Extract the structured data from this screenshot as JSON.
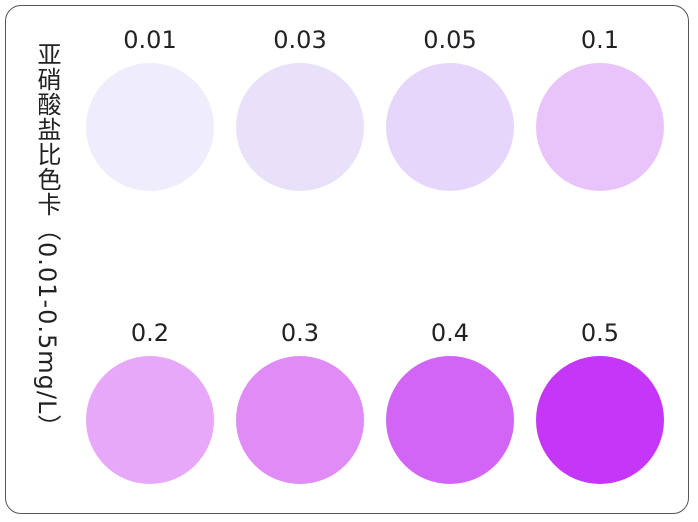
{
  "title": "亚硝酸盐比色卡（0.01-0.5mg/L）",
  "swatches": [
    {
      "label": "0.01",
      "color": "#efedfc"
    },
    {
      "label": "0.03",
      "color": "#e9e1fa"
    },
    {
      "label": "0.05",
      "color": "#e6d6fb"
    },
    {
      "label": "0.1",
      "color": "#e9c4fb"
    },
    {
      "label": "0.2",
      "color": "#e8a8f9"
    },
    {
      "label": "0.3",
      "color": "#e08bf6"
    },
    {
      "label": "0.4",
      "color": "#d265f5"
    },
    {
      "label": "0.5",
      "color": "#c636f7"
    }
  ]
}
